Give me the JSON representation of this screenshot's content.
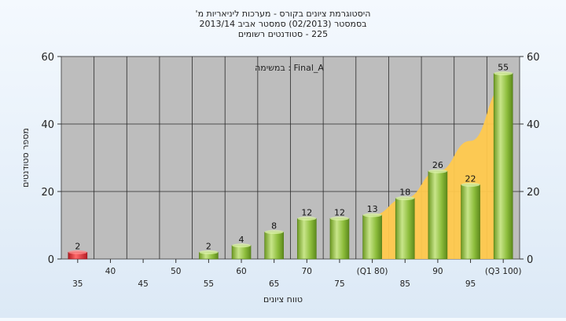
{
  "chart_data": {
    "type": "bar",
    "title_lines": [
      "היסטוגרמת ציונים בקורס - מערכות ליניאריות מ'",
      "בסמסטר  (02/2013)  סמסטר אביב 2013/14",
      "225 - סטודנטים רשומים"
    ],
    "annotation": "במשימה : Final_A",
    "xlabel": "טווח ציונים",
    "ylabel": "מספר סטודנטים",
    "ylim": [
      0,
      60
    ],
    "yticks": [
      0,
      20,
      40,
      60
    ],
    "categories": [
      "35",
      "40",
      "45",
      "50",
      "55",
      "60",
      "65",
      "70",
      "75",
      "(Q1 80)",
      "85",
      "90",
      "95",
      "(Q3 100)"
    ],
    "values": [
      2,
      0,
      0,
      0,
      2,
      4,
      8,
      12,
      12,
      13,
      18,
      26,
      22,
      55
    ],
    "data_labels": [
      "2",
      "",
      "",
      "",
      "2",
      "4",
      "8",
      "12",
      "12",
      "13",
      "18",
      "26",
      "22",
      "55"
    ],
    "highlight_color": "#e0303a",
    "bar_color": "#8cbf3a",
    "area_color": "#ffc94d",
    "area_curve": [
      {
        "category": "(Q1 80)",
        "value": 13
      },
      {
        "category": "85",
        "value": 18
      },
      {
        "category": "90",
        "value": 26
      },
      {
        "category": "95",
        "value": 35
      },
      {
        "category": "(Q3 100)",
        "value": 51
      }
    ],
    "grid": true
  }
}
